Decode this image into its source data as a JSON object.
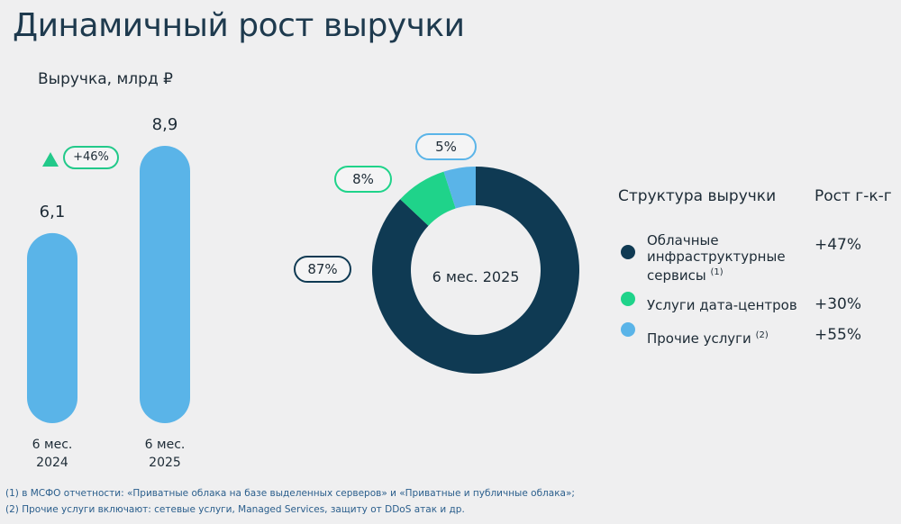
{
  "title": "Динамичный рост выручки",
  "chart_data": [
    {
      "type": "bar",
      "title": "Выручка, млрд ₽",
      "categories": [
        "6 мес. 2024",
        "6 мес. 2025"
      ],
      "values": [
        6.1,
        8.9
      ],
      "value_labels": [
        "6,1",
        "8,9"
      ],
      "color": "#5ab4e8",
      "annotation": "+46%"
    },
    {
      "type": "donut",
      "center_label": "6 мес. 2025",
      "legend_title": "Структура выручки",
      "categories": [
        "Облачные инфраструктурные сервисы",
        "Услуги дата-центров",
        "Прочие услуги"
      ],
      "footnote_marks": {
        "0": "(1)",
        "2": "(2)"
      },
      "values": [
        87,
        8,
        5
      ],
      "value_labels": [
        "87%",
        "8%",
        "5%"
      ],
      "colors": [
        "#0f3a53",
        "#1fd38a",
        "#5ab4e8"
      ],
      "growth": {
        "title": "Рост г-к-г",
        "values": [
          47,
          30,
          55
        ],
        "value_labels": [
          "+47%",
          "+30%",
          "+55%"
        ]
      }
    }
  ],
  "footnotes": [
    "(1) в МСФО отчетности: «Приватные облака на базе выделенных серверов» и «Приватные и публичные облака»;",
    "(2) Прочие услуги включают: сетевые услуги, Managed Services, защиту от DDoS атак и др."
  ]
}
